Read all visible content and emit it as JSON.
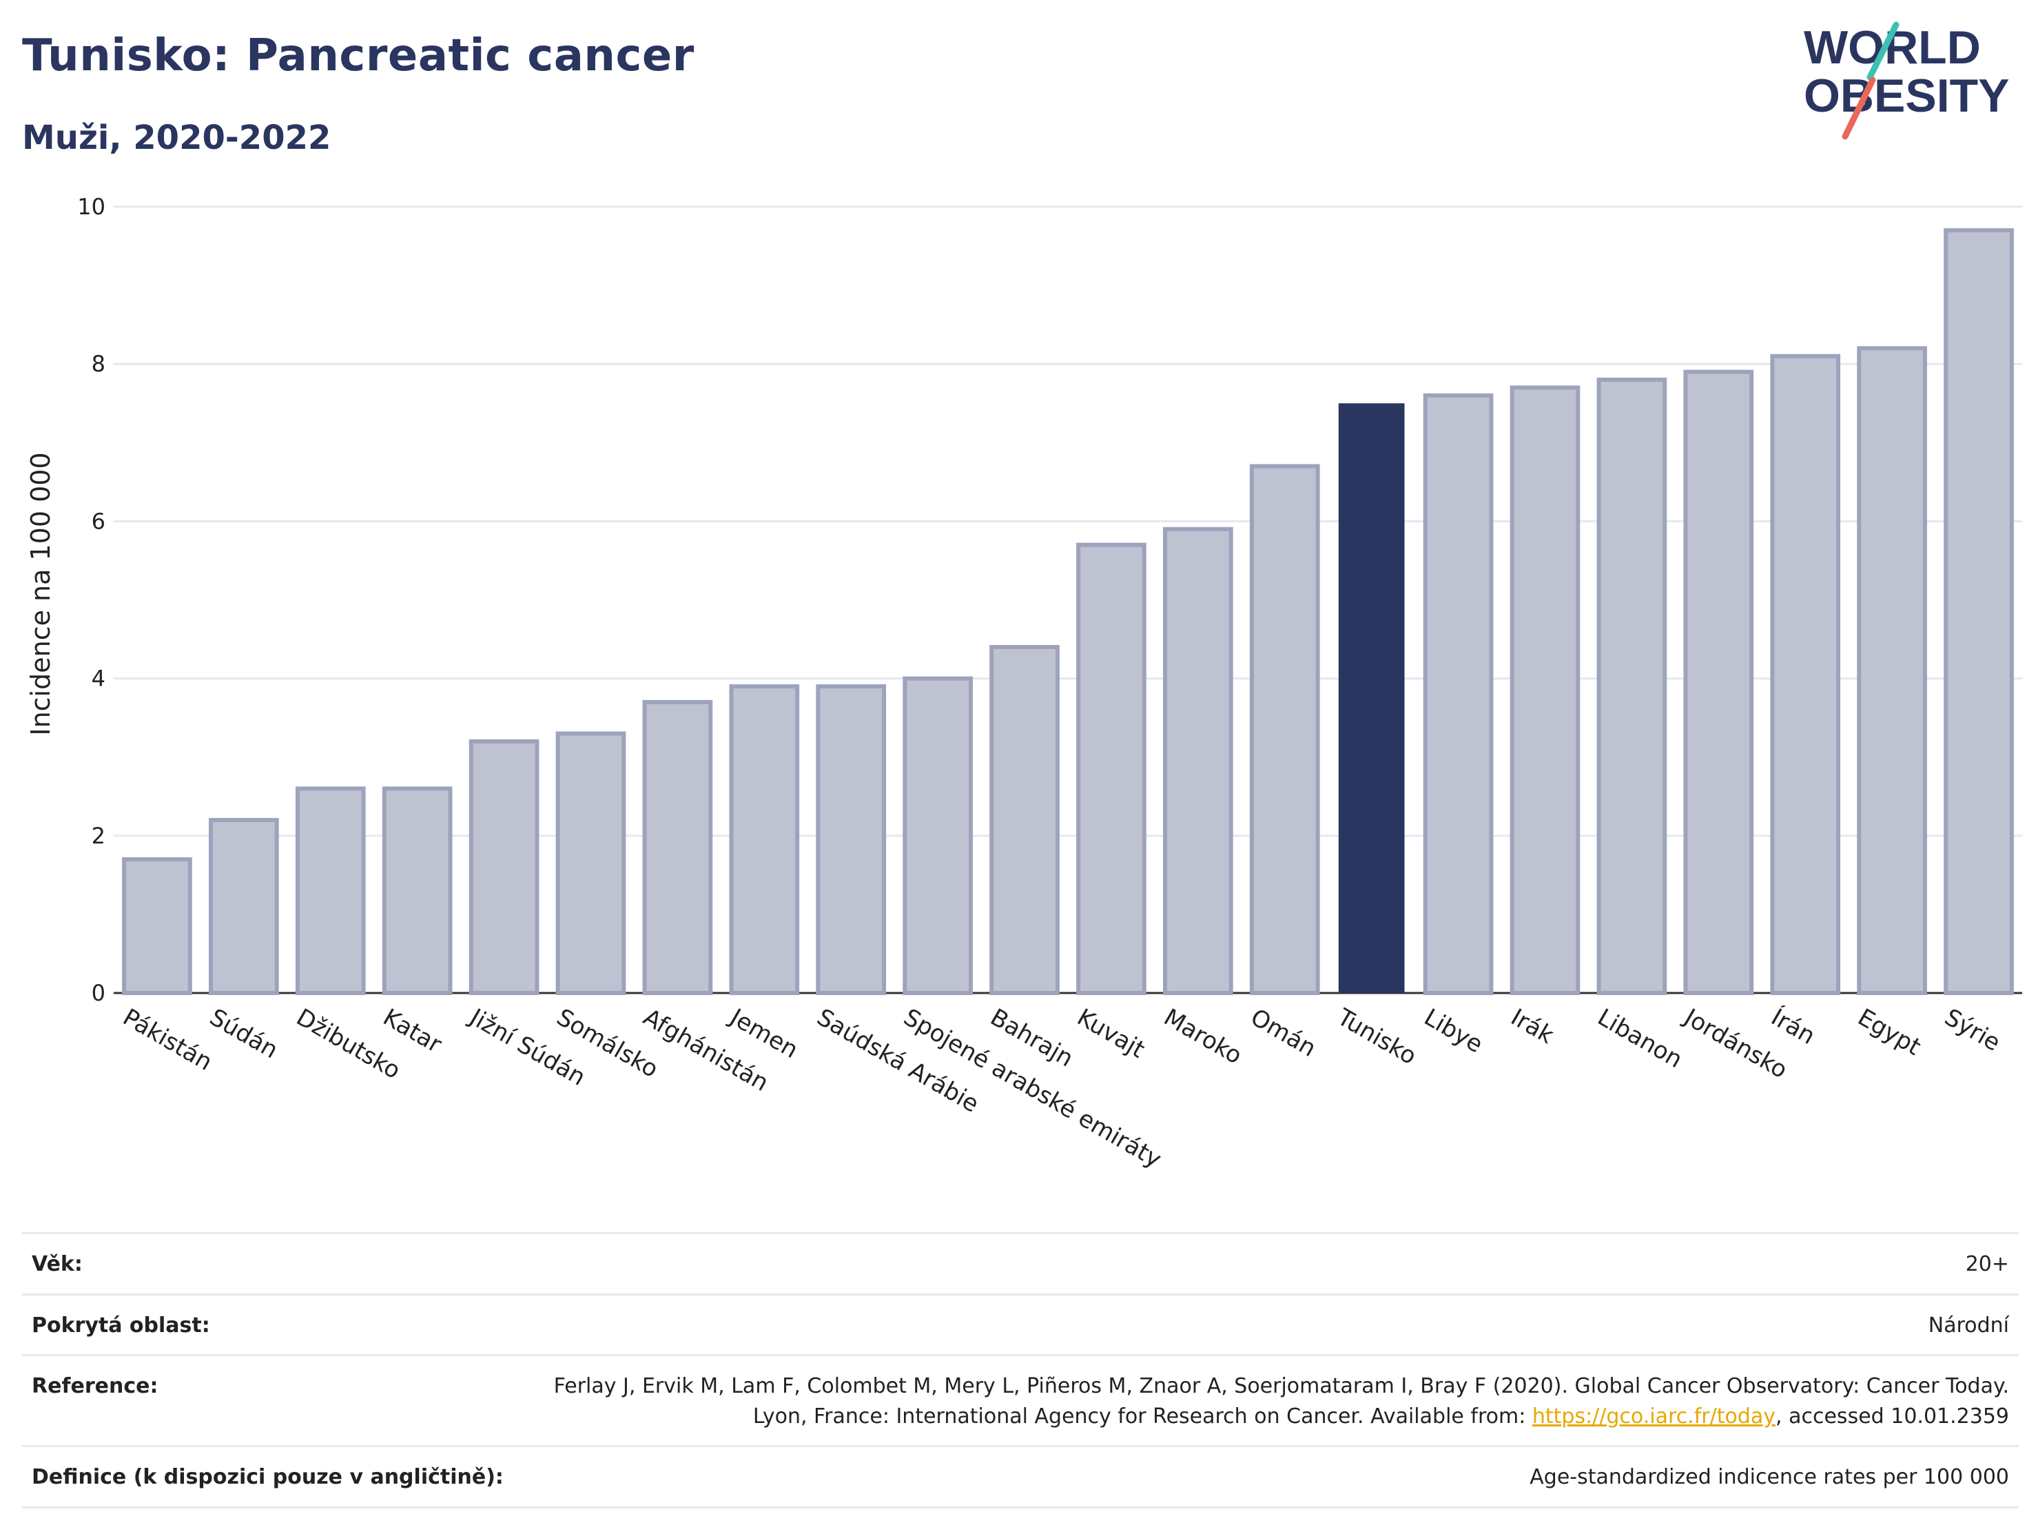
{
  "header": {
    "title": "Tunisko: Pancreatic cancer",
    "subtitle": "Muži, 2020-2022"
  },
  "logo": {
    "line1": "WORLD",
    "line2": "OBESITY"
  },
  "colors": {
    "highlight": "#2a3560",
    "bar_fill": "#bfc2d0",
    "bar_stroke": "#9ea3bc",
    "grid": "#e6e8ef",
    "logo_teal": "#3cc0b4",
    "logo_coral": "#e8685a"
  },
  "chart_data": {
    "type": "bar",
    "categories": [
      "Pákistán",
      "Súdán",
      "Džibutsko",
      "Katar",
      "Jižní Súdán",
      "Somálsko",
      "Afghánistán",
      "Jemen",
      "Saúdská Arábie",
      "Spojené arabské emiráty",
      "Bahrajn",
      "Kuvajt",
      "Maroko",
      "Omán",
      "Tunisko",
      "Libye",
      "Irák",
      "Libanon",
      "Jordánsko",
      "Írán",
      "Egypt",
      "Sýrie"
    ],
    "values": [
      1.7,
      2.2,
      2.6,
      2.6,
      3.2,
      3.3,
      3.7,
      3.9,
      3.9,
      4.0,
      4.4,
      5.7,
      5.9,
      6.7,
      7.5,
      7.6,
      7.7,
      7.8,
      7.9,
      8.1,
      8.2,
      9.7
    ],
    "highlight": "Tunisko",
    "title": "",
    "xlabel": "",
    "ylabel": "Incidence na 100 000",
    "ylim": [
      0,
      10
    ],
    "yticks": [
      0,
      2,
      4,
      6,
      8,
      10
    ],
    "grid": true
  },
  "info": {
    "age_label": "Věk:",
    "age_value": "20+",
    "coverage_label": "Pokrytá oblast:",
    "coverage_value": "Národní",
    "reference_label": "Reference:",
    "reference_text_1": "Ferlay J, Ervik M, Lam F, Colombet M, Mery L, Piñeros M, Znaor A, Soerjomataram I, Bray F (2020). Global Cancer Observatory: Cancer Today. Lyon, France: International Agency for Research on Cancer. Available from: ",
    "reference_link": "https://gco.iarc.fr/today",
    "reference_text_2": ", accessed 10.01.2359",
    "definition_label": "Definice (k dispozici pouze v angličtině):",
    "definition_value": "Age-standardized indicence rates per 100 000"
  }
}
